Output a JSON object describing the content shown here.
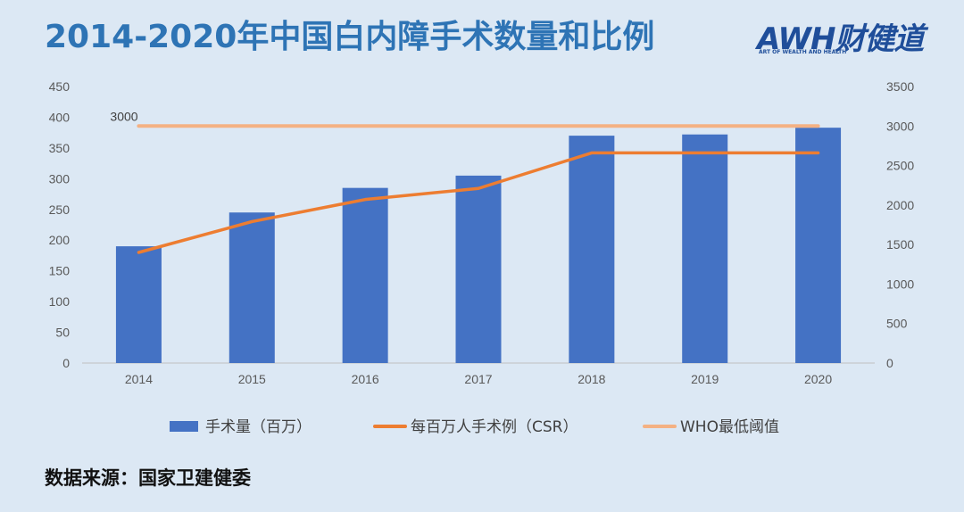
{
  "header": {
    "title": "2014-2020年中国白内障手术数量和比例"
  },
  "logo": {
    "brand": "AWH财健道",
    "tagline": "ART OF WEALTH AND HEALTH"
  },
  "footer": {
    "source": "数据来源：国家卫建健委"
  },
  "colors": {
    "bar": "#4472c4",
    "csr_line": "#ed7d31",
    "who_line": "#f4b183",
    "title": "#2e74b5"
  },
  "chart_data": {
    "type": "bar",
    "title": "2014-2020年中国白内障手术数量和比例",
    "categories": [
      "2014",
      "2015",
      "2016",
      "2017",
      "2018",
      "2019",
      "2020"
    ],
    "series": [
      {
        "name": "手术量（百万）",
        "type": "bar",
        "axis": "left",
        "values": [
          190,
          245,
          285,
          305,
          370,
          372,
          383
        ]
      },
      {
        "name": "每百万人手术例（CSR）",
        "type": "line",
        "axis": "right",
        "values": [
          1400,
          1790,
          2070,
          2210,
          2660,
          2660,
          2660
        ]
      },
      {
        "name": "WHO最低阈值",
        "type": "line",
        "axis": "right",
        "values": [
          3000,
          3000,
          3000,
          3000,
          3000,
          3000,
          3000
        ]
      }
    ],
    "y_left": {
      "min": 0,
      "max": 450,
      "ticks": [
        0,
        50,
        100,
        150,
        200,
        250,
        300,
        350,
        400,
        450
      ]
    },
    "y_right": {
      "min": 0,
      "max": 3500,
      "ticks": [
        0,
        500,
        1000,
        1500,
        2000,
        2500,
        3000,
        3500
      ]
    },
    "annotations": [
      {
        "text": "3000",
        "series": "WHO最低阈值",
        "category": "2014"
      }
    ],
    "legend_position": "bottom",
    "grid": false
  }
}
